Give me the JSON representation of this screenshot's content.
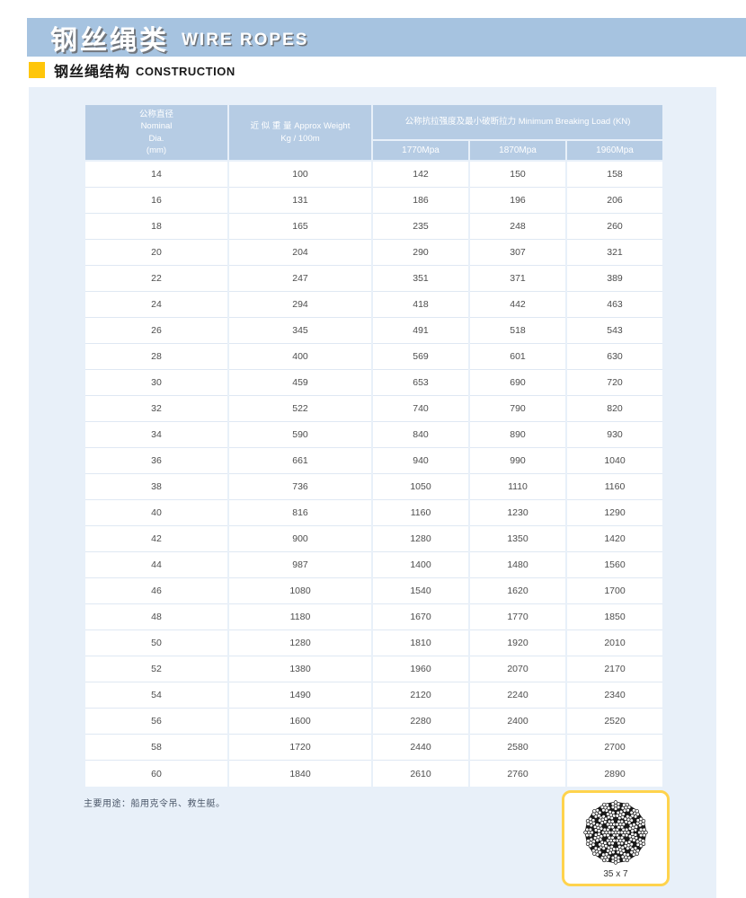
{
  "header": {
    "title_zh": "钢丝绳类",
    "title_en": "WIRE ROPES"
  },
  "section": {
    "title_zh": "钢丝绳结构",
    "title_en": "CONSTRUCTION"
  },
  "table": {
    "col1_header": [
      "公称直径",
      "Nominal",
      "Dia.",
      "(mm)"
    ],
    "col2_header": [
      "近 似 重 量 Approx Weight",
      "Kg / 100m"
    ],
    "group_header": "公称抗拉强度及最小破断拉力 Minimum Breaking Load (KN)",
    "sub_headers": [
      "1770Mpa",
      "1870Mpa",
      "1960Mpa"
    ],
    "rows": [
      [
        14,
        100,
        142,
        150,
        158
      ],
      [
        16,
        131,
        186,
        196,
        206
      ],
      [
        18,
        165,
        235,
        248,
        260
      ],
      [
        20,
        204,
        290,
        307,
        321
      ],
      [
        22,
        247,
        351,
        371,
        389
      ],
      [
        24,
        294,
        418,
        442,
        463
      ],
      [
        26,
        345,
        491,
        518,
        543
      ],
      [
        28,
        400,
        569,
        601,
        630
      ],
      [
        30,
        459,
        653,
        690,
        720
      ],
      [
        32,
        522,
        740,
        790,
        820
      ],
      [
        34,
        590,
        840,
        890,
        930
      ],
      [
        36,
        661,
        940,
        990,
        1040
      ],
      [
        38,
        736,
        1050,
        1110,
        1160
      ],
      [
        40,
        816,
        1160,
        1230,
        1290
      ],
      [
        42,
        900,
        1280,
        1350,
        1420
      ],
      [
        44,
        987,
        1400,
        1480,
        1560
      ],
      [
        46,
        1080,
        1540,
        1620,
        1700
      ],
      [
        48,
        1180,
        1670,
        1770,
        1850
      ],
      [
        50,
        1280,
        1810,
        1920,
        2010
      ],
      [
        52,
        1380,
        1960,
        2070,
        2170
      ],
      [
        54,
        1490,
        2120,
        2240,
        2340
      ],
      [
        56,
        1600,
        2280,
        2400,
        2520
      ],
      [
        58,
        1720,
        2440,
        2580,
        2700
      ],
      [
        60,
        1840,
        2610,
        2760,
        2890
      ]
    ]
  },
  "note": "主要用途：船用克令吊、救生艇。",
  "diagram": {
    "label": "35 x 7"
  },
  "colors": {
    "band_blue": "#a6c3e0",
    "accent_yellow": "#ffc60a",
    "panel_blue": "#e8f0f9",
    "table_header_blue": "#b6cce4"
  }
}
